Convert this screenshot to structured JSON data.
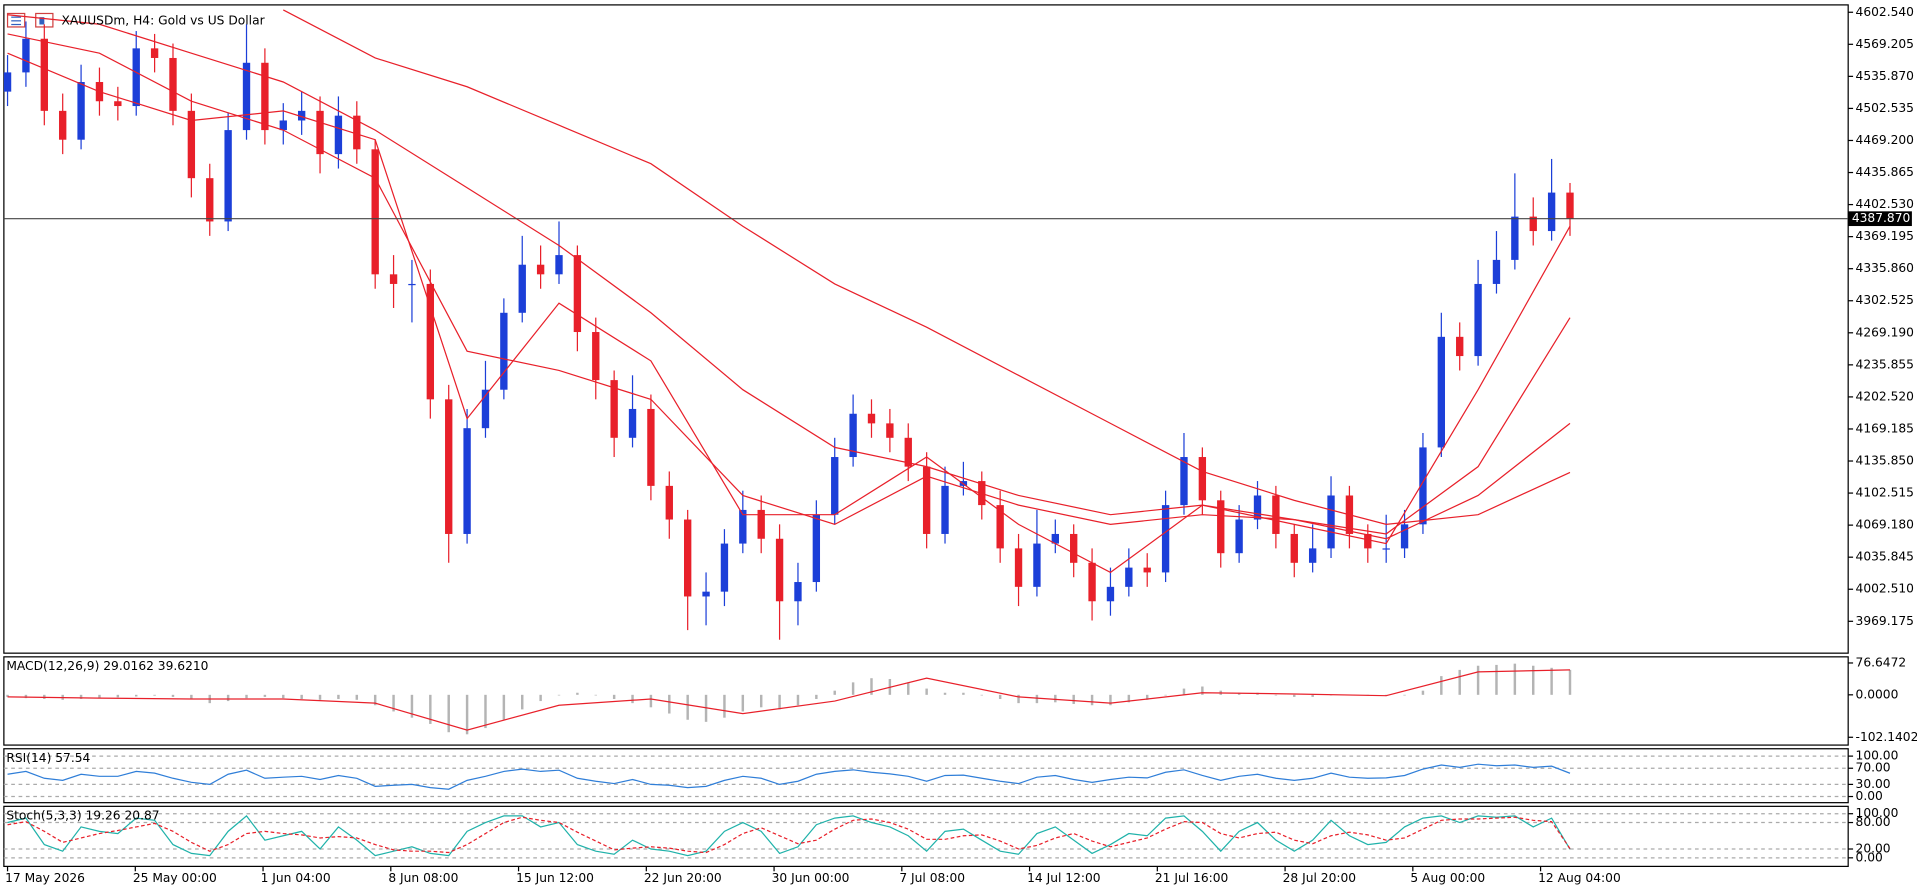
{
  "chart_data": [
    {
      "type": "candlestick",
      "title": "XAUUSDm, H4:  Gold vs US Dollar",
      "up_color": "#1c3fd8",
      "down_color": "#e8202a",
      "open": [
        4520,
        4540,
        4575,
        4500,
        4470,
        4530,
        4510,
        4505,
        4565,
        4555,
        4500,
        4430,
        4385,
        4480,
        4550,
        4480,
        4490,
        4500,
        4455,
        4495,
        4460,
        4330,
        4320,
        4320,
        4200,
        4060,
        4170,
        4210,
        4290,
        4340,
        4330,
        4350,
        4270,
        4220,
        4160,
        4190,
        4110,
        4075,
        3995,
        4000,
        4050,
        4085,
        4055,
        3990,
        4010,
        4080,
        4140,
        4185,
        4175,
        4160,
        4130,
        4060,
        4110,
        4115,
        4090,
        4045,
        4005,
        4050,
        4060,
        4030,
        3990,
        4005,
        4025,
        4020,
        4090,
        4140,
        4095,
        4040,
        4075,
        4100,
        4060,
        4030,
        4045,
        4100,
        4060,
        4045,
        4045,
        4070,
        4150,
        4265,
        4245,
        4320,
        4345,
        4390,
        4375,
        4415
      ],
      "high": [
        4558,
        4593,
        4590,
        4518,
        4548,
        4545,
        4525,
        4583,
        4580,
        4570,
        4518,
        4445,
        4498,
        4590,
        4565,
        4508,
        4520,
        4515,
        4515,
        4510,
        4470,
        4350,
        4345,
        4335,
        4215,
        4190,
        4240,
        4305,
        4370,
        4360,
        4385,
        4360,
        4285,
        4230,
        4225,
        4205,
        4125,
        4085,
        4020,
        4065,
        4105,
        4100,
        4070,
        4030,
        4095,
        4160,
        4205,
        4200,
        4190,
        4175,
        4145,
        4130,
        4135,
        4125,
        4105,
        4060,
        4085,
        4075,
        4070,
        4045,
        4025,
        4045,
        4040,
        4105,
        4165,
        4150,
        4105,
        4090,
        4115,
        4110,
        4070,
        4070,
        4120,
        4110,
        4070,
        4080,
        4085,
        4165,
        4290,
        4280,
        4345,
        4375,
        4435,
        4410,
        4450,
        4425
      ],
      "low": [
        4505,
        4525,
        4485,
        4455,
        4460,
        4495,
        4490,
        4495,
        4540,
        4485,
        4410,
        4370,
        4375,
        4470,
        4465,
        4465,
        4475,
        4435,
        4440,
        4445,
        4315,
        4295,
        4280,
        4180,
        4030,
        4050,
        4160,
        4200,
        4280,
        4315,
        4320,
        4250,
        4200,
        4140,
        4150,
        4095,
        4055,
        3960,
        3965,
        3985,
        4040,
        4040,
        3950,
        3965,
        4000,
        4070,
        4130,
        4160,
        4145,
        4115,
        4045,
        4050,
        4100,
        4075,
        4030,
        3985,
        3995,
        4040,
        4015,
        3970,
        3975,
        3995,
        4005,
        4010,
        4080,
        4080,
        4025,
        4030,
        4065,
        4045,
        4015,
        4020,
        4035,
        4045,
        4030,
        4030,
        4035,
        4060,
        4140,
        4230,
        4235,
        4310,
        4335,
        4360,
        4365,
        4370
      ],
      "close": [
        4540,
        4575,
        4500,
        4470,
        4530,
        4510,
        4505,
        4565,
        4555,
        4500,
        4430,
        4385,
        4480,
        4550,
        4480,
        4490,
        4500,
        4455,
        4495,
        4460,
        4330,
        4320,
        4320,
        4200,
        4060,
        4170,
        4210,
        4290,
        4340,
        4330,
        4350,
        4270,
        4220,
        4160,
        4190,
        4110,
        4075,
        3995,
        4000,
        4050,
        4085,
        4055,
        3990,
        4010,
        4080,
        4140,
        4185,
        4175,
        4160,
        4130,
        4060,
        4110,
        4115,
        4090,
        4045,
        4005,
        4050,
        4060,
        4030,
        3990,
        4005,
        4025,
        4020,
        4090,
        4140,
        4095,
        4040,
        4075,
        4100,
        4060,
        4030,
        4045,
        4100,
        4060,
        4045,
        4045,
        4070,
        4150,
        4265,
        4245,
        4320,
        4345,
        4390,
        4375,
        4415,
        4388
      ],
      "ma_x": [
        0,
        5,
        10,
        15,
        20,
        25,
        30,
        35,
        40,
        45,
        50,
        55,
        60,
        65,
        70,
        75,
        80,
        85
      ],
      "moving_averages": [
        {
          "color": "#e8202a",
          "values": [
            4560,
            4520,
            4490,
            4500,
            4470,
            4180,
            4300,
            4240,
            4080,
            4080,
            4140,
            4070,
            4020,
            4090,
            4070,
            4050,
            4210,
            4380
          ]
        },
        {
          "color": "#e8202a",
          "values": [
            4580,
            4560,
            4510,
            4480,
            4430,
            4250,
            4230,
            4200,
            4100,
            4070,
            4120,
            4090,
            4070,
            4080,
            4075,
            4060,
            4130,
            4285
          ]
        },
        {
          "color": "#e8202a",
          "values": [
            4600,
            4590,
            4560,
            4530,
            4480,
            4420,
            4360,
            4290,
            4210,
            4150,
            4130,
            4100,
            4080,
            4090,
            4075,
            4055,
            4100,
            4175
          ]
        },
        {
          "color": "#e8202a",
          "values": [
            null,
            null,
            null,
            4605,
            4555,
            4525,
            4485,
            4445,
            4380,
            4320,
            4275,
            4225,
            4175,
            4125,
            4095,
            4070,
            4080,
            4124
          ]
        }
      ],
      "current_price": {
        "value": 4387.87,
        "label": "4387.870"
      },
      "ylim": [
        3936.03,
        4610.19
      ],
      "yticks": [
        {
          "value": 4602.54,
          "label": "4602.540"
        },
        {
          "value": 4569.205,
          "label": "4569.205"
        },
        {
          "value": 4535.87,
          "label": "4535.870"
        },
        {
          "value": 4502.535,
          "label": "4502.535"
        },
        {
          "value": 4469.2,
          "label": "4469.200"
        },
        {
          "value": 4435.865,
          "label": "4435.865"
        },
        {
          "value": 4402.53,
          "label": "4402.530"
        },
        {
          "value": 4369.195,
          "label": "4369.195"
        },
        {
          "value": 4335.86,
          "label": "4335.860"
        },
        {
          "value": 4302.525,
          "label": "4302.525"
        },
        {
          "value": 4269.19,
          "label": "4269.190"
        },
        {
          "value": 4235.855,
          "label": "4235.855"
        },
        {
          "value": 4202.52,
          "label": "4202.520"
        },
        {
          "value": 4169.185,
          "label": "4169.185"
        },
        {
          "value": 4135.85,
          "label": "4135.850"
        },
        {
          "value": 4102.515,
          "label": "4102.515"
        },
        {
          "value": 4069.18,
          "label": "4069.180"
        },
        {
          "value": 4035.845,
          "label": "4035.845"
        },
        {
          "value": 4002.51,
          "label": "4002.510"
        },
        {
          "value": 3969.175,
          "label": "3969.175"
        }
      ],
      "xticks": [
        {
          "value": 0,
          "label": "17 May 2026"
        },
        {
          "value": 6.95,
          "label": "25 May 00:00"
        },
        {
          "value": 13.9,
          "label": "1 Jun 04:00"
        },
        {
          "value": 20.85,
          "label": "8 Jun 08:00"
        },
        {
          "value": 27.8,
          "label": "15 Jun 12:00"
        },
        {
          "value": 34.75,
          "label": "22 Jun 20:00"
        },
        {
          "value": 41.7,
          "label": "30 Jun 00:00"
        },
        {
          "value": 48.65,
          "label": "7 Jul 08:00"
        },
        {
          "value": 55.6,
          "label": "14 Jul 12:00"
        },
        {
          "value": 62.55,
          "label": "21 Jul 16:00"
        },
        {
          "value": 69.5,
          "label": "28 Jul 20:00"
        },
        {
          "value": 76.45,
          "label": "5 Aug 00:00"
        },
        {
          "value": 83.4,
          "label": "12 Aug 04:00"
        }
      ]
    },
    {
      "type": "macd",
      "title": "MACD(12,26,9) 29.0162 39.6210",
      "hist_color": "#b4b4b4",
      "values": [
        -5,
        -8,
        -10,
        -12,
        -10,
        -8,
        -6,
        -4,
        -2,
        -5,
        -10,
        -20,
        -15,
        -8,
        -5,
        -8,
        -10,
        -12,
        -10,
        -12,
        -25,
        -40,
        -55,
        -70,
        -90,
        -95,
        -80,
        -60,
        -35,
        -15,
        0,
        5,
        0,
        -10,
        -20,
        -30,
        -45,
        -60,
        -65,
        -55,
        -40,
        -30,
        -35,
        -25,
        -10,
        10,
        30,
        40,
        38,
        30,
        15,
        5,
        5,
        0,
        -10,
        -20,
        -20,
        -18,
        -22,
        -25,
        -25,
        -18,
        -12,
        0,
        15,
        20,
        10,
        5,
        5,
        0,
        -5,
        -5,
        0,
        0,
        -2,
        -3,
        0,
        10,
        45,
        60,
        70,
        72,
        75,
        70,
        65,
        60
      ],
      "signal_x": [
        0,
        5,
        10,
        15,
        20,
        25,
        30,
        35,
        40,
        45,
        50,
        55,
        60,
        65,
        70,
        75,
        80,
        85
      ],
      "signal": {
        "color": "#e8202a",
        "values": [
          -5,
          -8,
          -10,
          -10,
          -20,
          -85,
          -25,
          -10,
          -45,
          -15,
          40,
          -5,
          -20,
          5,
          2,
          -2,
          55,
          60
        ]
      },
      "ylim": [
        -120.9,
        91.4
      ],
      "yticks": [
        76.6472,
        {
          "value": 0,
          "label": "0.0000"
        },
        -102.1402
      ]
    },
    {
      "type": "line",
      "title": "RSI(14) 57.54",
      "grid": "dashed",
      "series": [
        {
          "color": "#2f7ed8",
          "values": [
            55,
            62,
            45,
            40,
            55,
            50,
            50,
            62,
            58,
            45,
            35,
            30,
            55,
            65,
            45,
            48,
            50,
            42,
            52,
            45,
            25,
            28,
            30,
            22,
            18,
            40,
            50,
            62,
            68,
            62,
            65,
            45,
            38,
            32,
            42,
            30,
            28,
            22,
            25,
            40,
            50,
            45,
            30,
            38,
            55,
            62,
            66,
            60,
            56,
            50,
            38,
            52,
            53,
            45,
            38,
            32,
            48,
            52,
            42,
            35,
            42,
            48,
            46,
            60,
            66,
            52,
            40,
            50,
            55,
            45,
            40,
            45,
            58,
            48,
            45,
            46,
            52,
            68,
            78,
            72,
            80,
            76,
            78,
            72,
            75,
            57.54
          ]
        }
      ],
      "ylim": [
        -15.2,
        118.2
      ],
      "yticks": [
        {
          "value": 100,
          "label": "100.00"
        },
        {
          "value": 70,
          "label": "70.00"
        },
        {
          "value": 30,
          "label": "30.00"
        },
        {
          "value": 0,
          "label": "0.00"
        }
      ]
    },
    {
      "type": "line",
      "title": "Stoch(5,3,3) 19.26 20.87",
      "grid": "dashed",
      "series": [
        {
          "color": "#20b2aa",
          "values": [
            80,
            90,
            30,
            15,
            70,
            60,
            55,
            90,
            85,
            30,
            10,
            5,
            60,
            95,
            40,
            50,
            60,
            20,
            70,
            40,
            5,
            15,
            25,
            10,
            5,
            60,
            80,
            95,
            95,
            70,
            80,
            30,
            15,
            8,
            40,
            20,
            15,
            5,
            15,
            60,
            80,
            60,
            10,
            25,
            75,
            90,
            95,
            80,
            70,
            50,
            15,
            60,
            65,
            40,
            15,
            8,
            55,
            70,
            40,
            10,
            30,
            55,
            50,
            90,
            95,
            60,
            15,
            60,
            80,
            40,
            15,
            40,
            85,
            50,
            30,
            35,
            70,
            90,
            95,
            80,
            95,
            92,
            95,
            70,
            90,
            19.26
          ]
        },
        {
          "color": "#e8202a",
          "dash": true,
          "values": [
            75,
            82,
            60,
            35,
            45,
            55,
            62,
            70,
            78,
            60,
            35,
            15,
            30,
            55,
            60,
            55,
            52,
            45,
            48,
            45,
            30,
            18,
            15,
            15,
            12,
            30,
            55,
            80,
            92,
            85,
            80,
            58,
            38,
            18,
            22,
            25,
            22,
            15,
            12,
            30,
            55,
            68,
            50,
            32,
            40,
            65,
            85,
            88,
            80,
            65,
            42,
            42,
            50,
            52,
            38,
            20,
            28,
            45,
            55,
            38,
            25,
            35,
            45,
            65,
            82,
            80,
            55,
            45,
            55,
            58,
            40,
            32,
            50,
            58,
            52,
            40,
            45,
            65,
            85,
            88,
            88,
            90,
            92,
            85,
            82,
            20.87
          ]
        }
      ],
      "ylim": [
        -19.4,
        116.7
      ],
      "yticks": [
        {
          "value": 100,
          "label": "100.00"
        },
        {
          "value": 80,
          "label": "80.00"
        },
        {
          "value": 20,
          "label": "20.00"
        },
        {
          "value": 0,
          "label": "0.00"
        }
      ]
    }
  ]
}
